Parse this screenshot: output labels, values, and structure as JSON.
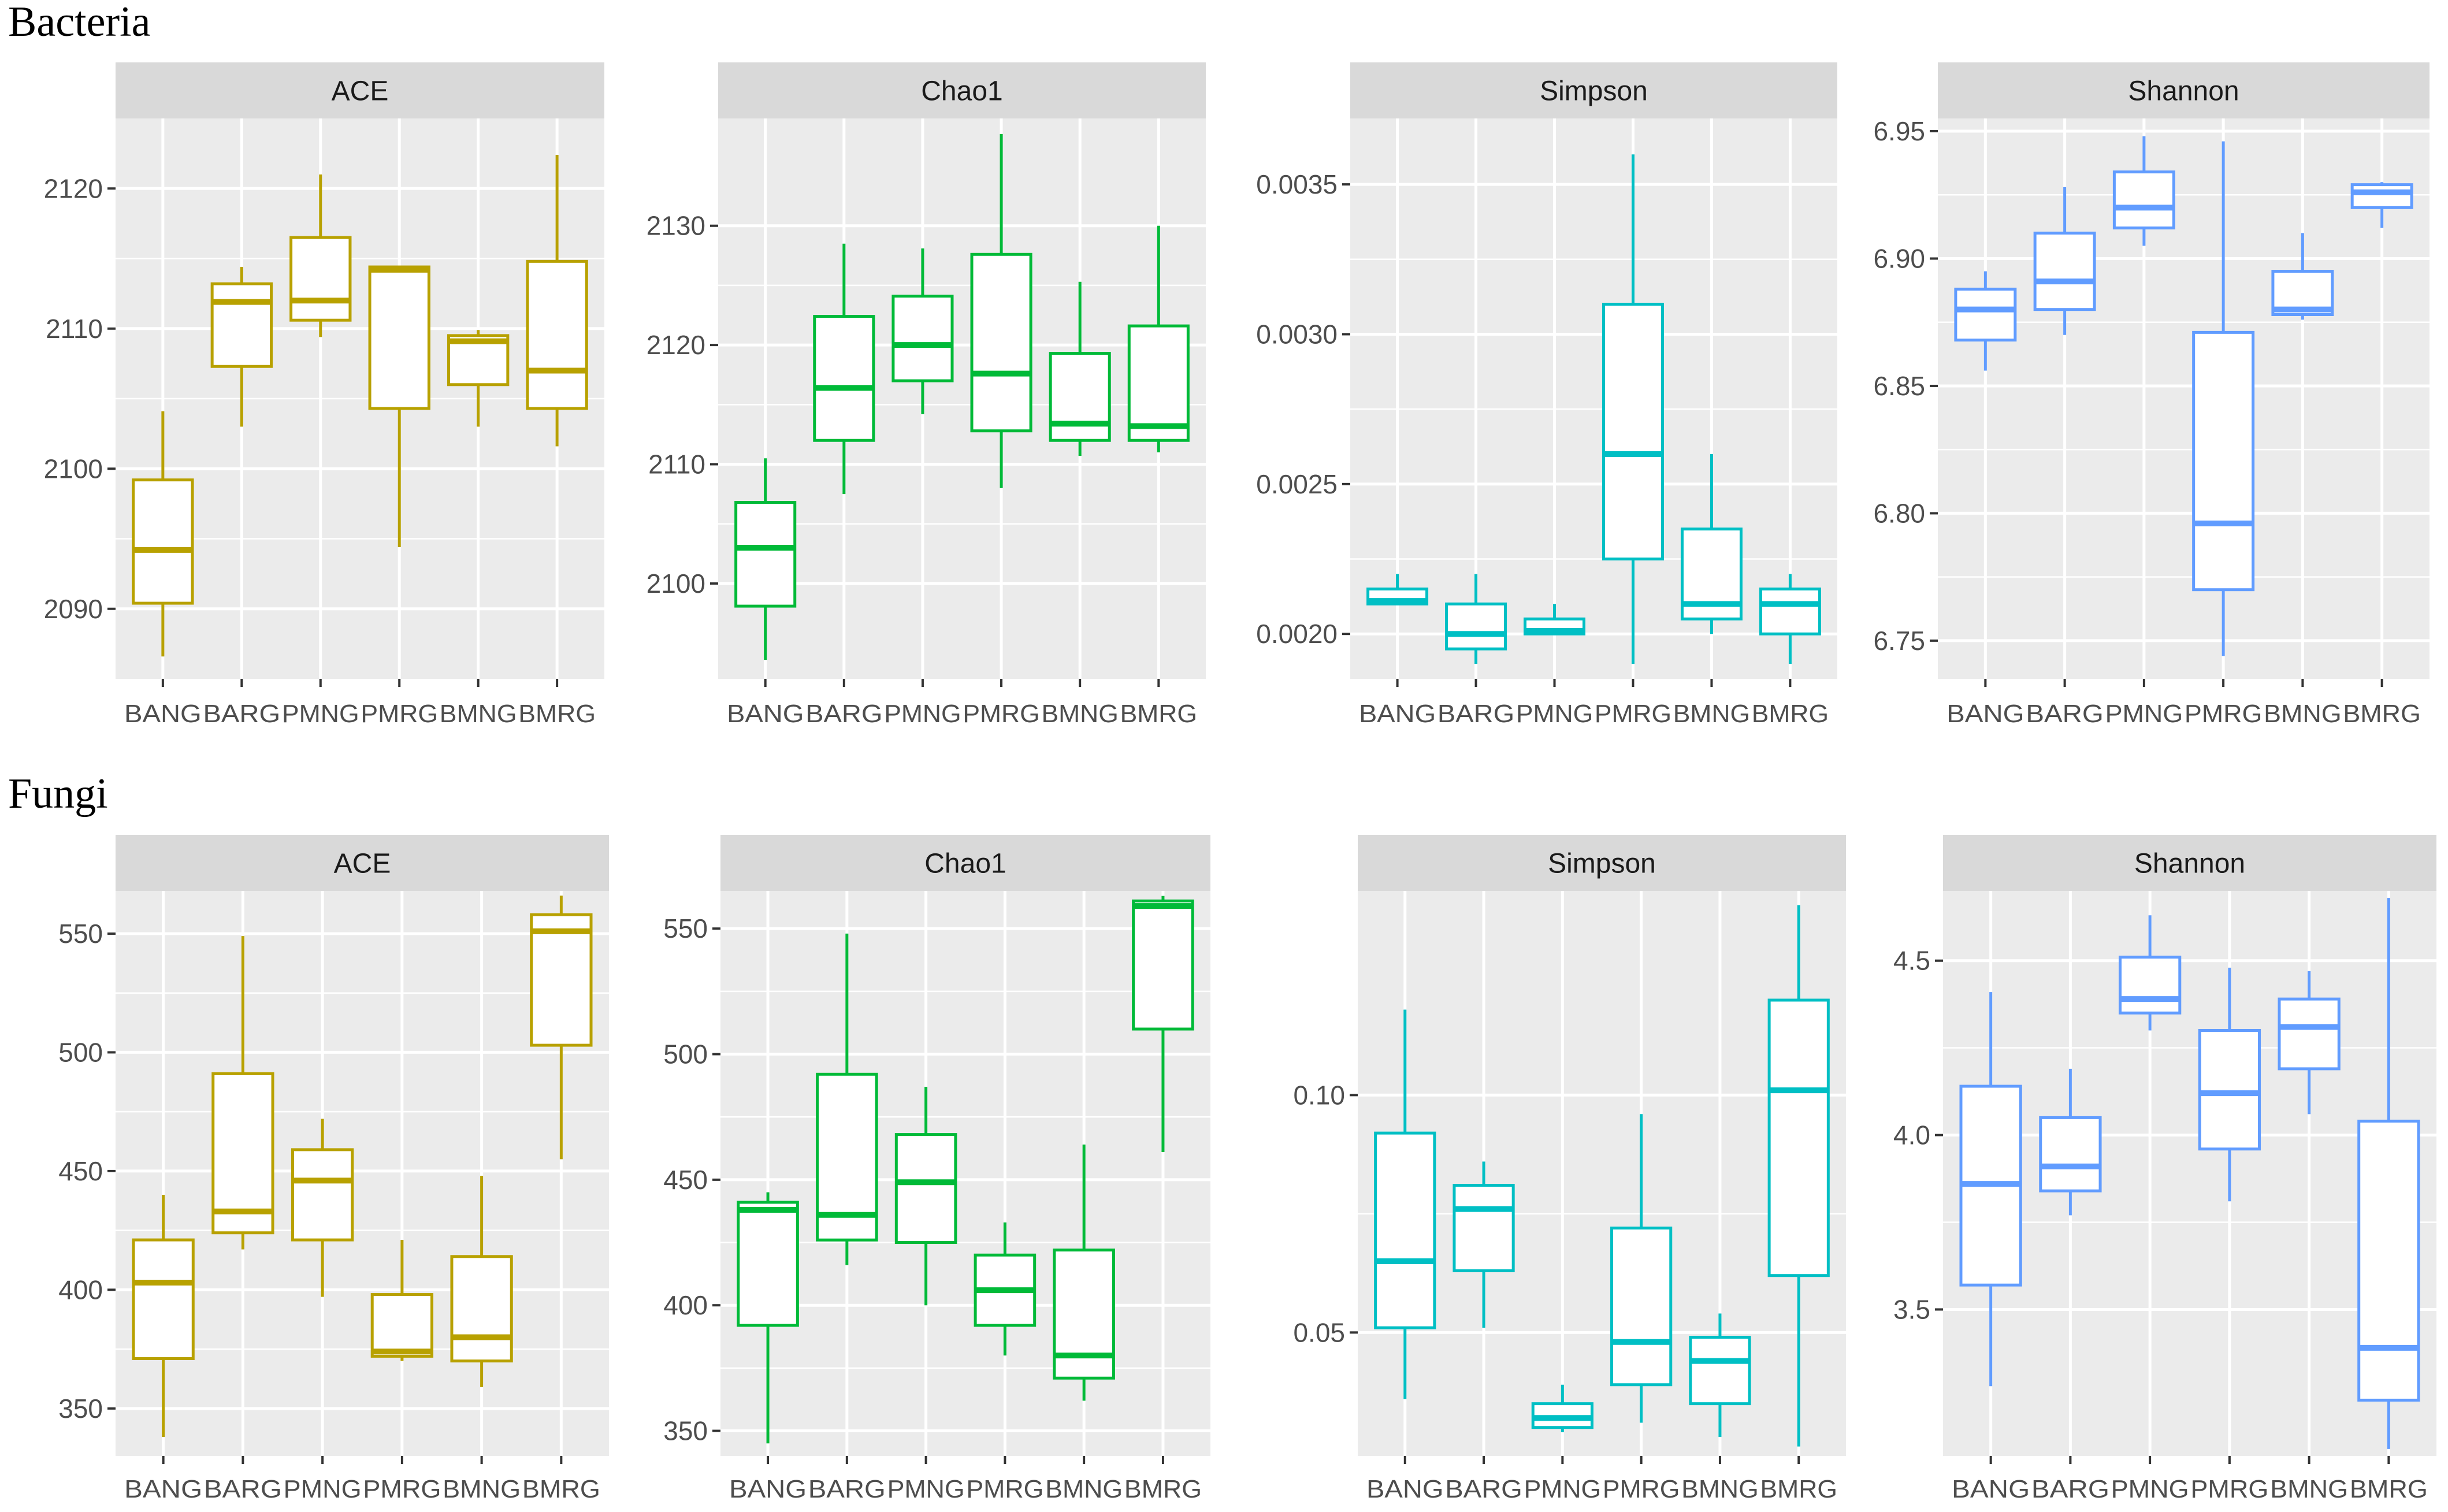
{
  "groups": [
    "BANG",
    "BARG",
    "PMNG",
    "PMRG",
    "BMNG",
    "BMRG"
  ],
  "colors": {
    "ACE": "#B8A100",
    "Chao1": "#00BA38",
    "Simpson": "#00BFC4",
    "Shannon": "#619CFF",
    "panel_bg": "#EBEBEB",
    "strip_bg": "#D9D9D9",
    "grid": "#FFFFFF"
  },
  "sections": [
    {
      "label": "Bacteria",
      "panels": [
        {
          "title": "ACE",
          "ylim": [
            2085,
            2125
          ],
          "yticks": [
            2090,
            2100,
            2110,
            2120
          ],
          "tick_labels": [
            "2090",
            "2100",
            "2110",
            "2120"
          ],
          "boxes": [
            {
              "min": 2086.6,
              "q1": 2090.4,
              "median": 2094.2,
              "q3": 2099.2,
              "max": 2104.1
            },
            {
              "min": 2103.0,
              "q1": 2107.3,
              "median": 2111.9,
              "q3": 2113.2,
              "max": 2114.4
            },
            {
              "min": 2109.4,
              "q1": 2110.6,
              "median": 2112.0,
              "q3": 2116.5,
              "max": 2121.0
            },
            {
              "min": 2094.4,
              "q1": 2104.3,
              "median": 2114.2,
              "q3": 2114.4,
              "max": 2114.4
            },
            {
              "min": 2103.0,
              "q1": 2106.0,
              "median": 2109.1,
              "q3": 2109.5,
              "max": 2109.9
            },
            {
              "min": 2101.6,
              "q1": 2104.3,
              "median": 2107.0,
              "q3": 2114.8,
              "max": 2122.4
            }
          ]
        },
        {
          "title": "Chao1",
          "ylim": [
            2092,
            2139
          ],
          "yticks": [
            2100,
            2110,
            2120,
            2130
          ],
          "tick_labels": [
            "2100",
            "2110",
            "2120",
            "2130"
          ],
          "boxes": [
            {
              "min": 2093.6,
              "q1": 2098.1,
              "median": 2103.0,
              "q3": 2106.8,
              "max": 2110.5
            },
            {
              "min": 2107.5,
              "q1": 2112.0,
              "median": 2116.4,
              "q3": 2122.4,
              "max": 2128.5
            },
            {
              "min": 2114.2,
              "q1": 2117.0,
              "median": 2120.0,
              "q3": 2124.1,
              "max": 2128.1
            },
            {
              "min": 2108.0,
              "q1": 2112.8,
              "median": 2117.6,
              "q3": 2127.6,
              "max": 2137.7
            },
            {
              "min": 2110.7,
              "q1": 2112.0,
              "median": 2113.4,
              "q3": 2119.3,
              "max": 2125.3
            },
            {
              "min": 2111.0,
              "q1": 2112.0,
              "median": 2113.2,
              "q3": 2121.6,
              "max": 2130.0
            }
          ]
        },
        {
          "title": "Simpson",
          "ylim": [
            0.00185,
            0.00372
          ],
          "yticks": [
            0.002,
            0.0025,
            0.003,
            0.0035
          ],
          "tick_labels": [
            "0.0020",
            "0.0025",
            "0.0030",
            "0.0035"
          ],
          "boxes": [
            {
              "min": 0.0021,
              "q1": 0.0021,
              "median": 0.00211,
              "q3": 0.00215,
              "max": 0.0022
            },
            {
              "min": 0.0019,
              "q1": 0.00195,
              "median": 0.002,
              "q3": 0.0021,
              "max": 0.0022
            },
            {
              "min": 0.002,
              "q1": 0.002,
              "median": 0.00201,
              "q3": 0.00205,
              "max": 0.0021
            },
            {
              "min": 0.0019,
              "q1": 0.00225,
              "median": 0.0026,
              "q3": 0.0031,
              "max": 0.0036
            },
            {
              "min": 0.002,
              "q1": 0.00205,
              "median": 0.0021,
              "q3": 0.00235,
              "max": 0.0026
            },
            {
              "min": 0.0019,
              "q1": 0.002,
              "median": 0.0021,
              "q3": 0.00215,
              "max": 0.0022
            }
          ]
        },
        {
          "title": "Shannon",
          "ylim": [
            6.735,
            6.955
          ],
          "yticks": [
            6.75,
            6.8,
            6.85,
            6.9,
            6.95
          ],
          "tick_labels": [
            "6.75",
            "6.80",
            "6.85",
            "6.90",
            "6.95"
          ],
          "boxes": [
            {
              "min": 6.856,
              "q1": 6.868,
              "median": 6.88,
              "q3": 6.888,
              "max": 6.895
            },
            {
              "min": 6.87,
              "q1": 6.88,
              "median": 6.891,
              "q3": 6.91,
              "max": 6.928
            },
            {
              "min": 6.905,
              "q1": 6.912,
              "median": 6.92,
              "q3": 6.934,
              "max": 6.948
            },
            {
              "min": 6.744,
              "q1": 6.77,
              "median": 6.796,
              "q3": 6.871,
              "max": 6.946
            },
            {
              "min": 6.876,
              "q1": 6.878,
              "median": 6.88,
              "q3": 6.895,
              "max": 6.91
            },
            {
              "min": 6.912,
              "q1": 6.92,
              "median": 6.926,
              "q3": 6.929,
              "max": 6.93
            }
          ]
        }
      ]
    },
    {
      "label": "Fungi",
      "panels": [
        {
          "title": "ACE",
          "ylim": [
            330,
            568
          ],
          "yticks": [
            350,
            400,
            450,
            500,
            550
          ],
          "tick_labels": [
            "350",
            "400",
            "450",
            "500",
            "550"
          ],
          "boxes": [
            {
              "min": 338,
              "q1": 371,
              "median": 403,
              "q3": 421,
              "max": 440
            },
            {
              "min": 417,
              "q1": 424,
              "median": 433,
              "q3": 491,
              "max": 549
            },
            {
              "min": 397,
              "q1": 421,
              "median": 446,
              "q3": 459,
              "max": 472
            },
            {
              "min": 370,
              "q1": 372,
              "median": 374,
              "q3": 398,
              "max": 421
            },
            {
              "min": 359,
              "q1": 370,
              "median": 380,
              "q3": 414,
              "max": 448
            },
            {
              "min": 455,
              "q1": 503,
              "median": 551,
              "q3": 558,
              "max": 566
            }
          ]
        },
        {
          "title": "Chao1",
          "ylim": [
            340,
            565
          ],
          "yticks": [
            350,
            400,
            450,
            500,
            550
          ],
          "tick_labels": [
            "350",
            "400",
            "450",
            "500",
            "550"
          ],
          "boxes": [
            {
              "min": 345,
              "q1": 392,
              "median": 438,
              "q3": 441,
              "max": 445
            },
            {
              "min": 416,
              "q1": 426,
              "median": 436,
              "q3": 492,
              "max": 548
            },
            {
              "min": 400,
              "q1": 425,
              "median": 449,
              "q3": 468,
              "max": 487
            },
            {
              "min": 380,
              "q1": 392,
              "median": 406,
              "q3": 420,
              "max": 433
            },
            {
              "min": 362,
              "q1": 371,
              "median": 380,
              "q3": 422,
              "max": 464
            },
            {
              "min": 461,
              "q1": 510,
              "median": 559,
              "q3": 561,
              "max": 563
            }
          ]
        },
        {
          "title": "Simpson",
          "ylim": [
            0.024,
            0.143
          ],
          "yticks": [
            0.05,
            0.1
          ],
          "tick_labels": [
            "0.05",
            "0.10"
          ],
          "boxes": [
            {
              "min": 0.036,
              "q1": 0.051,
              "median": 0.065,
              "q3": 0.092,
              "max": 0.118
            },
            {
              "min": 0.051,
              "q1": 0.063,
              "median": 0.076,
              "q3": 0.081,
              "max": 0.086
            },
            {
              "min": 0.029,
              "q1": 0.03,
              "median": 0.032,
              "q3": 0.035,
              "max": 0.039
            },
            {
              "min": 0.031,
              "q1": 0.039,
              "median": 0.048,
              "q3": 0.072,
              "max": 0.096
            },
            {
              "min": 0.028,
              "q1": 0.035,
              "median": 0.044,
              "q3": 0.049,
              "max": 0.054
            },
            {
              "min": 0.026,
              "q1": 0.062,
              "median": 0.101,
              "q3": 0.12,
              "max": 0.14
            }
          ]
        },
        {
          "title": "Shannon",
          "ylim": [
            3.08,
            4.7
          ],
          "yticks": [
            3.5,
            4.0,
            4.5
          ],
          "tick_labels": [
            "3.5",
            "4.0",
            "4.5"
          ],
          "boxes": [
            {
              "min": 3.28,
              "q1": 3.57,
              "median": 3.86,
              "q3": 4.14,
              "max": 4.41
            },
            {
              "min": 3.77,
              "q1": 3.84,
              "median": 3.91,
              "q3": 4.05,
              "max": 4.19
            },
            {
              "min": 4.3,
              "q1": 4.35,
              "median": 4.39,
              "q3": 4.51,
              "max": 4.63
            },
            {
              "min": 3.81,
              "q1": 3.96,
              "median": 4.12,
              "q3": 4.3,
              "max": 4.48
            },
            {
              "min": 4.06,
              "q1": 4.19,
              "median": 4.31,
              "q3": 4.39,
              "max": 4.47
            },
            {
              "min": 3.1,
              "q1": 3.24,
              "median": 3.39,
              "q3": 4.04,
              "max": 4.68
            }
          ]
        }
      ]
    }
  ],
  "chart_data": [
    {
      "type": "box",
      "title": "Bacteria ACE",
      "categories": [
        "BANG",
        "BARG",
        "PMNG",
        "PMRG",
        "BMNG",
        "BMRG"
      ],
      "ylim": [
        2085,
        2125
      ],
      "series": [
        {
          "name": "ACE",
          "median": [
            2094.2,
            2111.9,
            2112.0,
            2114.2,
            2109.1,
            2107.0
          ],
          "q1": [
            2090.4,
            2107.3,
            2110.6,
            2104.3,
            2106.0,
            2104.3
          ],
          "q3": [
            2099.2,
            2113.2,
            2116.5,
            2114.4,
            2109.5,
            2114.8
          ],
          "min": [
            2086.6,
            2103.0,
            2109.4,
            2094.4,
            2103.0,
            2101.6
          ],
          "max": [
            2104.1,
            2114.4,
            2121.0,
            2114.4,
            2109.9,
            2122.4
          ]
        }
      ]
    },
    {
      "type": "box",
      "title": "Bacteria Chao1",
      "categories": [
        "BANG",
        "BARG",
        "PMNG",
        "PMRG",
        "BMNG",
        "BMRG"
      ],
      "ylim": [
        2092,
        2139
      ],
      "series": [
        {
          "name": "Chao1",
          "median": [
            2103.0,
            2116.4,
            2120.0,
            2117.6,
            2113.4,
            2113.2
          ],
          "q1": [
            2098.1,
            2112.0,
            2117.0,
            2112.8,
            2112.0,
            2112.0
          ],
          "q3": [
            2106.8,
            2122.4,
            2124.1,
            2127.6,
            2119.3,
            2121.6
          ],
          "min": [
            2093.6,
            2107.5,
            2114.2,
            2108.0,
            2110.7,
            2111.0
          ],
          "max": [
            2110.5,
            2128.5,
            2128.1,
            2137.7,
            2125.3,
            2130.0
          ]
        }
      ]
    },
    {
      "type": "box",
      "title": "Bacteria Simpson",
      "categories": [
        "BANG",
        "BARG",
        "PMNG",
        "PMRG",
        "BMNG",
        "BMRG"
      ],
      "ylim": [
        0.00185,
        0.00372
      ],
      "series": [
        {
          "name": "Simpson",
          "median": [
            0.00211,
            0.002,
            0.00201,
            0.0026,
            0.0021,
            0.0021
          ],
          "q1": [
            0.0021,
            0.00195,
            0.002,
            0.00225,
            0.00205,
            0.002
          ],
          "q3": [
            0.00215,
            0.0021,
            0.00205,
            0.0031,
            0.00235,
            0.00215
          ],
          "min": [
            0.0021,
            0.0019,
            0.002,
            0.0019,
            0.002,
            0.0019
          ],
          "max": [
            0.0022,
            0.0022,
            0.0021,
            0.0036,
            0.0026,
            0.0022
          ]
        }
      ]
    },
    {
      "type": "box",
      "title": "Bacteria Shannon",
      "categories": [
        "BANG",
        "BARG",
        "PMNG",
        "PMRG",
        "BMNG",
        "BMRG"
      ],
      "ylim": [
        6.735,
        6.955
      ],
      "series": [
        {
          "name": "Shannon",
          "median": [
            6.88,
            6.891,
            6.92,
            6.796,
            6.88,
            6.926
          ],
          "q1": [
            6.868,
            6.88,
            6.912,
            6.77,
            6.878,
            6.92
          ],
          "q3": [
            6.888,
            6.91,
            6.934,
            6.871,
            6.895,
            6.929
          ],
          "min": [
            6.856,
            6.87,
            6.905,
            6.744,
            6.876,
            6.912
          ],
          "max": [
            6.895,
            6.928,
            6.948,
            6.946,
            6.91,
            6.93
          ]
        }
      ]
    },
    {
      "type": "box",
      "title": "Fungi ACE",
      "categories": [
        "BANG",
        "BARG",
        "PMNG",
        "PMRG",
        "BMNG",
        "BMRG"
      ],
      "ylim": [
        330,
        568
      ],
      "series": [
        {
          "name": "ACE",
          "median": [
            403,
            433,
            446,
            374,
            380,
            551
          ],
          "q1": [
            371,
            424,
            421,
            372,
            370,
            503
          ],
          "q3": [
            421,
            491,
            459,
            398,
            414,
            558
          ],
          "min": [
            338,
            417,
            397,
            370,
            359,
            455
          ],
          "max": [
            440,
            549,
            472,
            421,
            448,
            566
          ]
        }
      ]
    },
    {
      "type": "box",
      "title": "Fungi Chao1",
      "categories": [
        "BANG",
        "BARG",
        "PMNG",
        "PMRG",
        "BMNG",
        "BMRG"
      ],
      "ylim": [
        340,
        565
      ],
      "series": [
        {
          "name": "Chao1",
          "median": [
            438,
            436,
            449,
            406,
            380,
            559
          ],
          "q1": [
            392,
            426,
            425,
            392,
            371,
            510
          ],
          "q3": [
            441,
            492,
            468,
            420,
            422,
            561
          ],
          "min": [
            345,
            416,
            400,
            380,
            362,
            461
          ],
          "max": [
            445,
            548,
            487,
            433,
            464,
            563
          ]
        }
      ]
    },
    {
      "type": "box",
      "title": "Fungi Simpson",
      "categories": [
        "BANG",
        "BARG",
        "PMNG",
        "PMRG",
        "BMNG",
        "BMRG"
      ],
      "ylim": [
        0.024,
        0.143
      ],
      "series": [
        {
          "name": "Simpson",
          "median": [
            0.065,
            0.076,
            0.032,
            0.048,
            0.044,
            0.101
          ],
          "q1": [
            0.051,
            0.063,
            0.03,
            0.039,
            0.035,
            0.062
          ],
          "q3": [
            0.092,
            0.081,
            0.035,
            0.072,
            0.049,
            0.12
          ],
          "min": [
            0.036,
            0.051,
            0.029,
            0.031,
            0.028,
            0.026
          ],
          "max": [
            0.118,
            0.086,
            0.039,
            0.096,
            0.054,
            0.14
          ]
        }
      ]
    },
    {
      "type": "box",
      "title": "Fungi Shannon",
      "categories": [
        "BANG",
        "BARG",
        "PMNG",
        "PMRG",
        "BMNG",
        "BMRG"
      ],
      "ylim": [
        3.08,
        4.7
      ],
      "series": [
        {
          "name": "Shannon",
          "median": [
            3.86,
            3.91,
            4.39,
            4.12,
            4.31,
            3.39
          ],
          "q1": [
            3.57,
            3.84,
            4.35,
            3.96,
            4.19,
            3.24
          ],
          "q3": [
            4.14,
            4.05,
            4.51,
            4.3,
            4.39,
            4.04
          ],
          "min": [
            3.28,
            3.77,
            4.3,
            3.81,
            4.06,
            3.1
          ],
          "max": [
            4.41,
            4.19,
            4.63,
            4.48,
            4.47,
            4.68
          ]
        }
      ]
    }
  ]
}
